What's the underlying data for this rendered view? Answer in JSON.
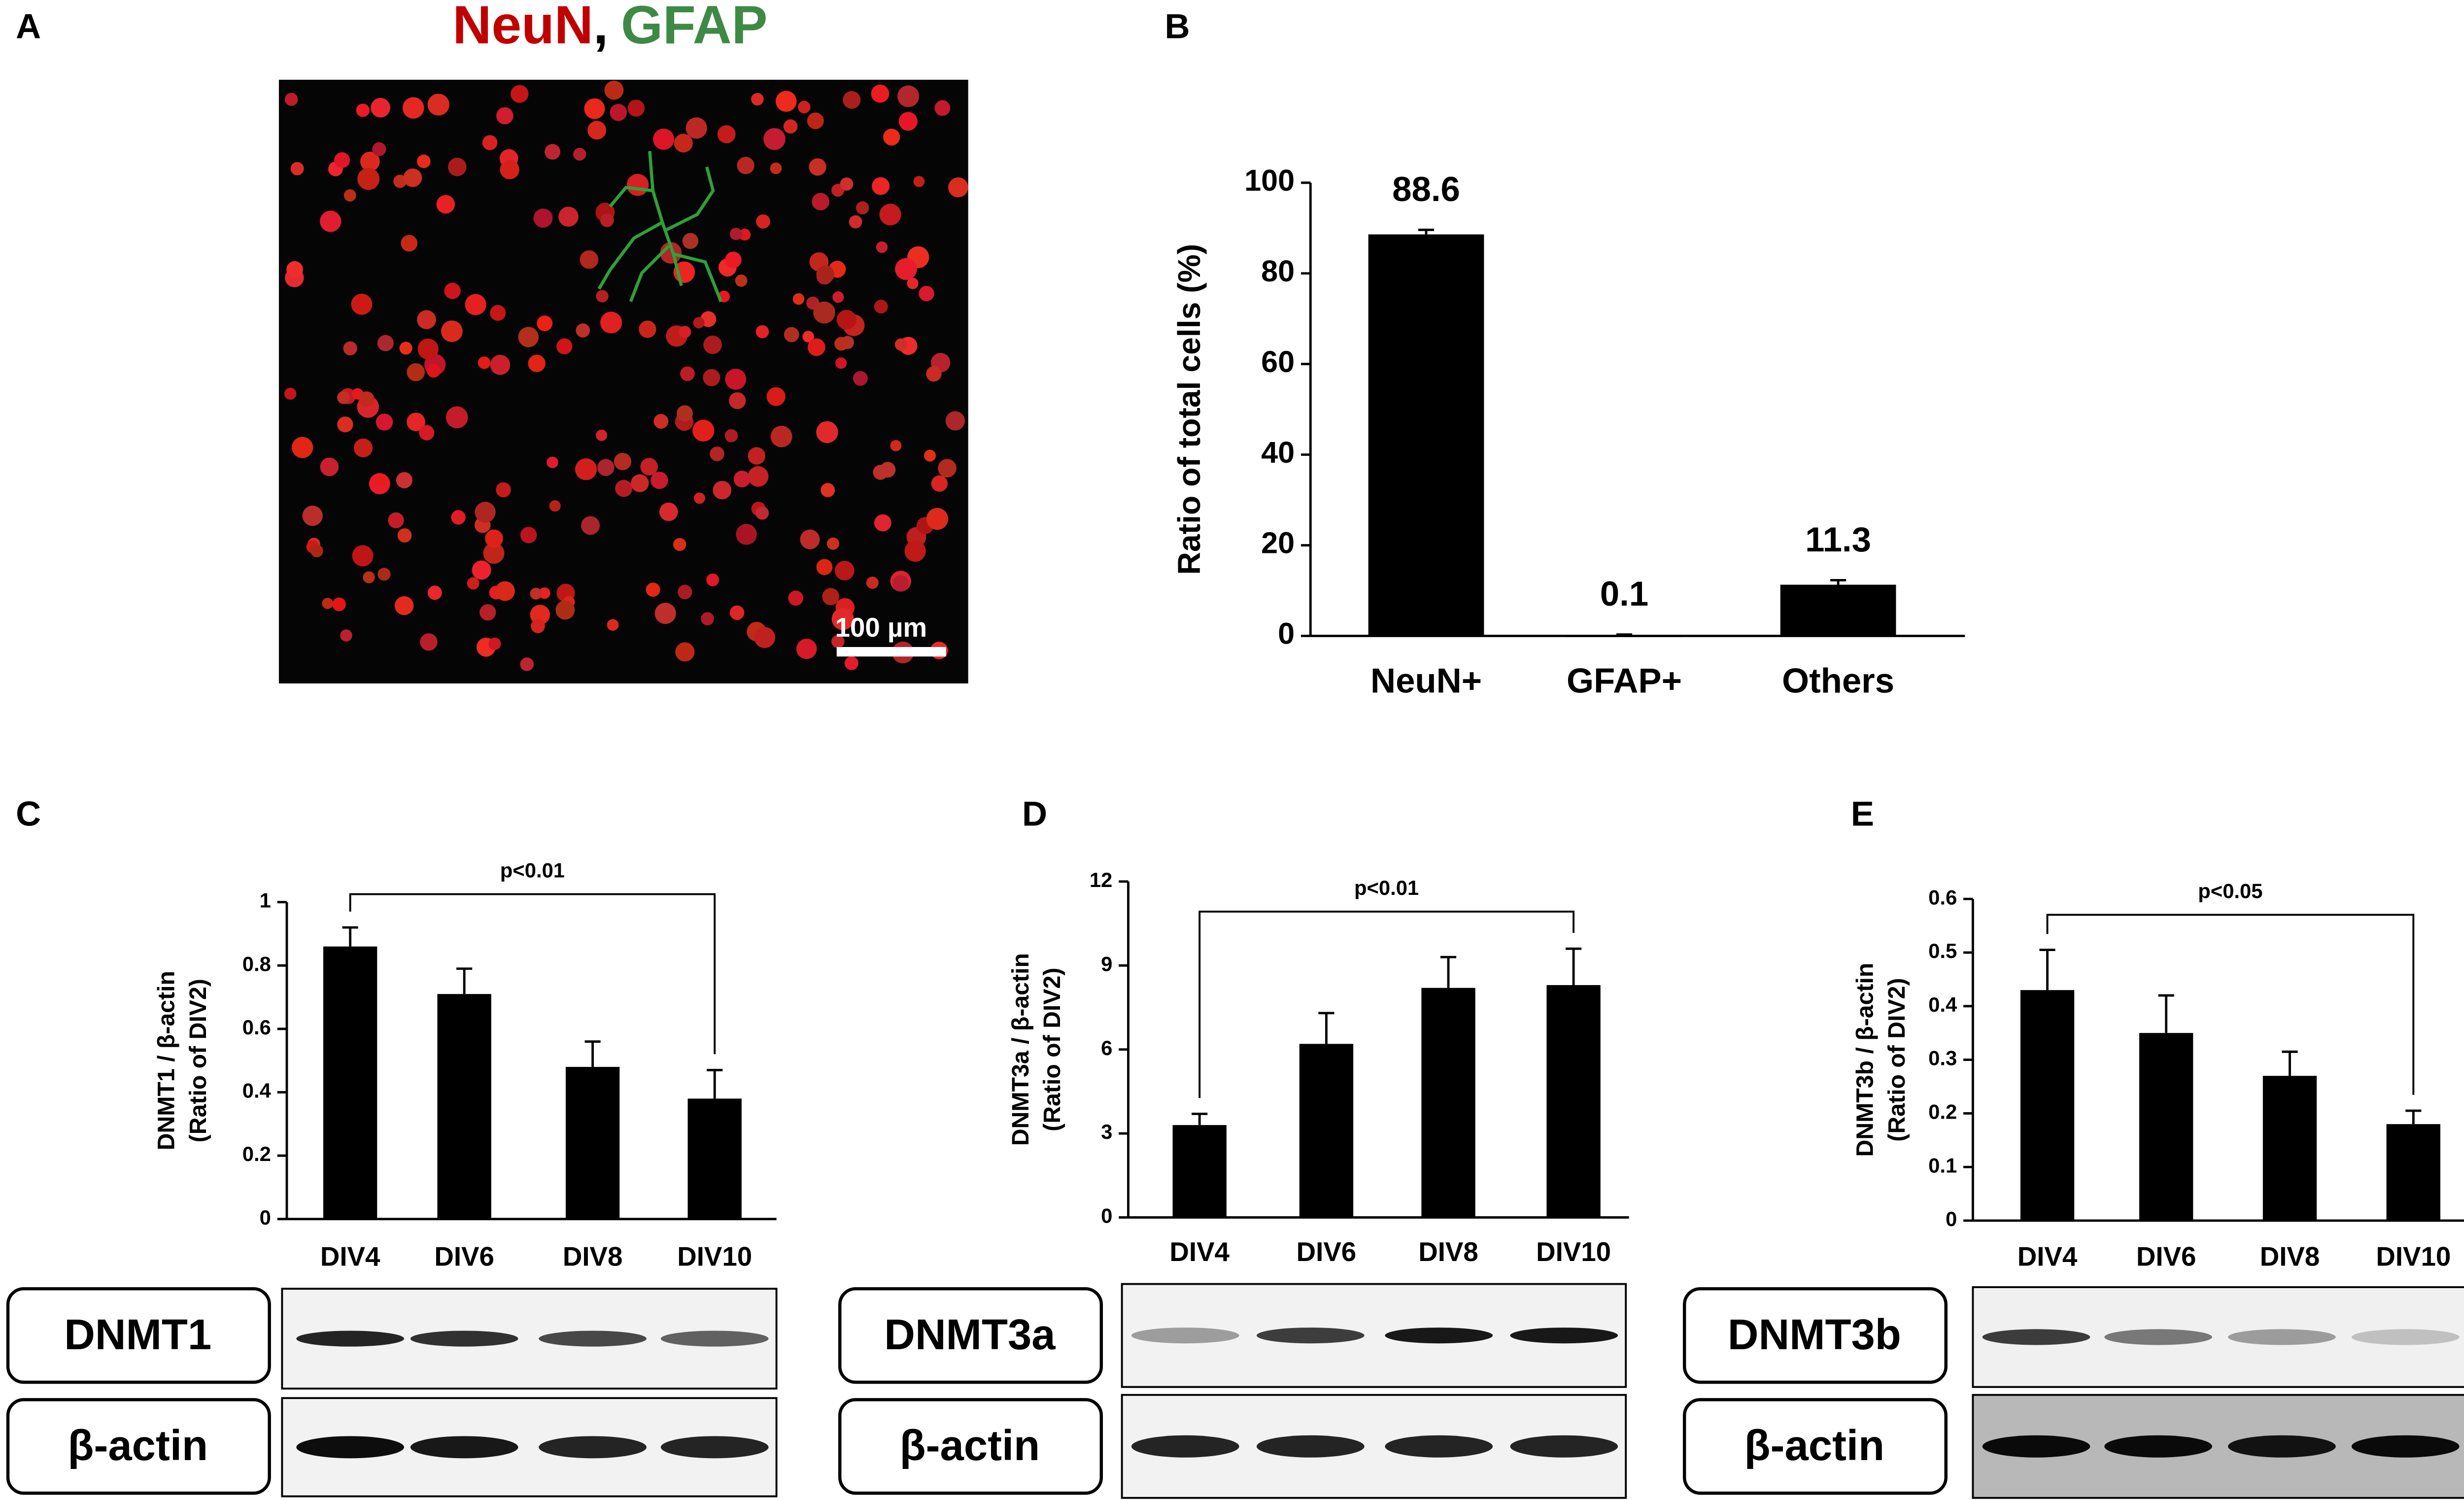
{
  "image": {
    "label": "A",
    "title_red": "NeuN",
    "separator": ",",
    "title_green": "GFAP",
    "scale_bar": "100 µm"
  },
  "chart_data": [
    {
      "type": "bar",
      "label": "B",
      "ylabel": [
        "Ratio of total cells (%)"
      ],
      "categories": [
        "NeuN+",
        "GFAP+",
        "Others"
      ],
      "values": [
        88.6,
        0.1,
        11.3
      ],
      "errors": [
        1.0,
        0.2,
        1.0
      ],
      "data_labels": true,
      "color": "#000000",
      "ylim": [
        0,
        100
      ],
      "yticks": [
        0,
        20,
        40,
        60,
        80,
        100
      ]
    },
    {
      "type": "bar",
      "label": "C",
      "ylabel": [
        "DNMT1 / β-actin",
        "(Ratio of DIV2)"
      ],
      "categories": [
        "DIV4",
        "DIV6",
        "DIV8",
        "DIV10"
      ],
      "values": [
        0.86,
        0.71,
        0.48,
        0.38
      ],
      "errors": [
        0.06,
        0.08,
        0.08,
        0.09
      ],
      "annotation": "p<0.01",
      "color": "#000000",
      "ylim": [
        0,
        1
      ],
      "yticks": [
        0,
        0.2,
        0.4,
        0.6,
        0.8,
        1
      ]
    },
    {
      "type": "bar",
      "label": "D",
      "ylabel": [
        "DNMT3a / β-actin",
        "(Ratio of DIV2)"
      ],
      "categories": [
        "DIV4",
        "DIV6",
        "DIV8",
        "DIV10"
      ],
      "values": [
        3.3,
        6.2,
        8.2,
        8.3
      ],
      "errors": [
        0.4,
        1.1,
        1.1,
        1.3
      ],
      "annotation": "p<0.01",
      "color": "#000000",
      "ylim": [
        0,
        12
      ],
      "yticks": [
        0,
        3,
        6,
        9,
        12
      ]
    },
    {
      "type": "bar",
      "label": "E",
      "ylabel": [
        "DNMT3b / β-actin",
        "(Ratio of DIV2)"
      ],
      "categories": [
        "DIV4",
        "DIV6",
        "DIV8",
        "DIV10"
      ],
      "values": [
        0.43,
        0.35,
        0.27,
        0.18
      ],
      "errors": [
        0.075,
        0.07,
        0.045,
        0.025
      ],
      "annotation": "p<0.05",
      "color": "#000000",
      "ylim": [
        0,
        0.6
      ],
      "yticks": [
        0,
        0.1,
        0.2,
        0.3,
        0.4,
        0.5,
        0.6
      ]
    }
  ],
  "blots": [
    {
      "rows": [
        "DNMT1",
        "β-actin"
      ]
    },
    {
      "rows": [
        "DNMT3a",
        "β-actin"
      ]
    },
    {
      "rows": [
        "DNMT3b",
        "β-actin"
      ]
    }
  ]
}
